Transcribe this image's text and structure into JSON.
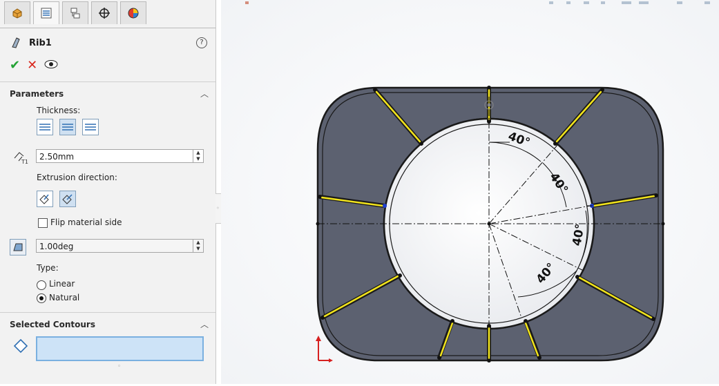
{
  "panel": {
    "tabs": [
      {
        "icon": "feature-manager-icon"
      },
      {
        "icon": "property-manager-icon"
      },
      {
        "icon": "configuration-manager-icon"
      },
      {
        "icon": "dimxpert-icon"
      },
      {
        "icon": "display-manager-icon"
      }
    ],
    "feature_title": "Rib1",
    "help_glyph": "?",
    "actions": {
      "ok": "✔",
      "cancel": "✕",
      "preview": "👁"
    },
    "parameters": {
      "title": "Parameters",
      "thickness_label": "Thickness:",
      "thickness_value": "2.50mm",
      "extrusion_label": "Extrusion direction:",
      "flip_label": "Flip material side",
      "draft_value": "1.00deg",
      "type_label": "Type:",
      "type_options": [
        "Linear",
        "Natural"
      ],
      "type_selected": "Natural"
    },
    "contours": {
      "title": "Selected Contours"
    }
  },
  "viewport": {
    "angles": [
      "40°",
      "40°",
      "40°",
      "40°"
    ]
  },
  "colors": {
    "face": "#5c6170",
    "rib": "#f2e41c",
    "edge": "#1a1a1a",
    "selection": "#cde3f7"
  }
}
